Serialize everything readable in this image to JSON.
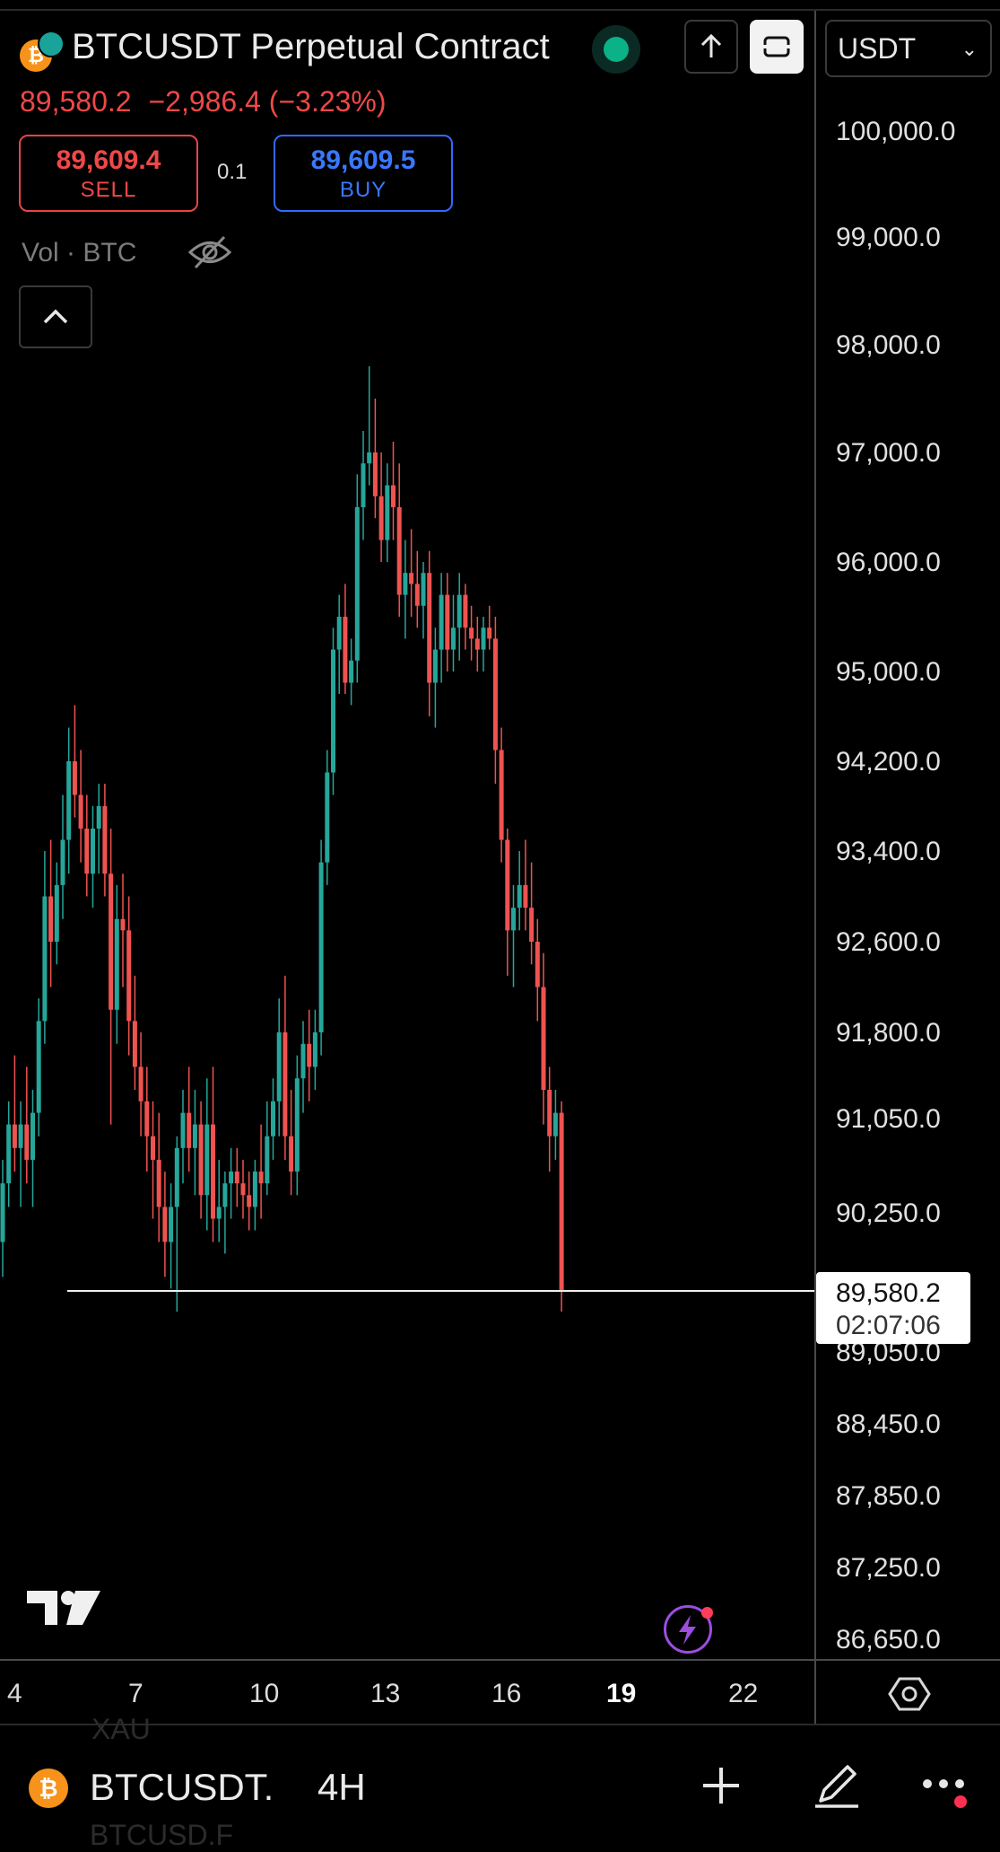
{
  "header": {
    "symbol_title": "BTCUSDT Perpetual Contract",
    "last_price": "89,580.2",
    "change": "−2,986.4",
    "change_pct": "(−3.23%)",
    "currency": "USDT",
    "status_color": "#0bb187"
  },
  "trade": {
    "sell_price": "89,609.4",
    "sell_label": "SELL",
    "buy_price": "89,609.5",
    "buy_label": "BUY",
    "spread": "0.1"
  },
  "indicator": {
    "label": "Vol · BTC"
  },
  "price_axis": {
    "labels": [
      "100,000.0",
      "99,000.0",
      "98,000.0",
      "97,000.0",
      "96,000.0",
      "95,000.0",
      "94,200.0",
      "93,400.0",
      "92,600.0",
      "91,800.0",
      "91,050.0",
      "90,250.0",
      "89,050.0",
      "88,450.0",
      "87,850.0",
      "87,250.0",
      "86,650.0"
    ],
    "current_price": "89,580.2",
    "countdown": "02:07:06"
  },
  "time_axis": {
    "labels": [
      "4",
      "7",
      "10",
      "13",
      "16",
      "19",
      "22"
    ],
    "bold_label": "19"
  },
  "bottom_bar": {
    "symbol": "BTCUSDT.",
    "interval": "4H",
    "ghost_above": "XAU",
    "ghost_below": "BTCUSD.F"
  },
  "colors": {
    "up": "#26a69a",
    "down": "#ef5350",
    "accent_sell": "#f04848",
    "accent_buy": "#3a78ff"
  },
  "chart_data": {
    "type": "candlestick",
    "symbol": "BTCUSDT",
    "interval": "4H",
    "price_unit": "USDT",
    "x_tick_labels": [
      "4",
      "7",
      "10",
      "13",
      "16",
      "19",
      "22"
    ],
    "last_price": 89580.2,
    "ohlc": [
      [
        90000,
        90700,
        89700,
        90500
      ],
      [
        90500,
        91200,
        90300,
        91000
      ],
      [
        91000,
        91600,
        90600,
        90800
      ],
      [
        90800,
        91200,
        90300,
        91000
      ],
      [
        91000,
        91500,
        90500,
        90700
      ],
      [
        90700,
        91300,
        90300,
        91100
      ],
      [
        91100,
        92100,
        90900,
        91900
      ],
      [
        91900,
        93400,
        91700,
        93000
      ],
      [
        93000,
        93500,
        92200,
        92600
      ],
      [
        92600,
        93300,
        92400,
        93100
      ],
      [
        93100,
        93900,
        92800,
        93500
      ],
      [
        93500,
        94500,
        93200,
        94200
      ],
      [
        94200,
        94700,
        93700,
        93900
      ],
      [
        93900,
        94300,
        93300,
        93600
      ],
      [
        93600,
        93900,
        93000,
        93200
      ],
      [
        93200,
        93800,
        92900,
        93600
      ],
      [
        93600,
        94000,
        93200,
        93800
      ],
      [
        93800,
        94000,
        93000,
        93200
      ],
      [
        93200,
        93600,
        91000,
        92000
      ],
      [
        92000,
        93100,
        91700,
        92800
      ],
      [
        92800,
        93200,
        92200,
        92700
      ],
      [
        92700,
        93000,
        91600,
        91900
      ],
      [
        91900,
        92300,
        91300,
        91500
      ],
      [
        91500,
        91800,
        90900,
        91200
      ],
      [
        91200,
        91500,
        90600,
        90900
      ],
      [
        90900,
        91200,
        90200,
        90700
      ],
      [
        90700,
        91100,
        90000,
        90300
      ],
      [
        90300,
        90600,
        89700,
        90000
      ],
      [
        90000,
        90500,
        89600,
        90300
      ],
      [
        90300,
        90900,
        89400,
        90800
      ],
      [
        90800,
        91300,
        90500,
        91100
      ],
      [
        91100,
        91500,
        90600,
        90800
      ],
      [
        90800,
        91300,
        90400,
        91000
      ],
      [
        91000,
        91200,
        90200,
        90400
      ],
      [
        90400,
        91400,
        90100,
        91000
      ],
      [
        91000,
        91500,
        90000,
        90200
      ],
      [
        90200,
        90700,
        90000,
        90300
      ],
      [
        90300,
        90600,
        89900,
        90500
      ],
      [
        90500,
        90800,
        90200,
        90600
      ],
      [
        90600,
        90800,
        90300,
        90500
      ],
      [
        90500,
        90700,
        90200,
        90400
      ],
      [
        90400,
        90600,
        90100,
        90300
      ],
      [
        90300,
        90700,
        90100,
        90600
      ],
      [
        90600,
        91000,
        90200,
        90500
      ],
      [
        90500,
        91200,
        90400,
        90900
      ],
      [
        90900,
        91400,
        90700,
        91200
      ],
      [
        91200,
        92100,
        90900,
        91800
      ],
      [
        91800,
        92300,
        90700,
        90900
      ],
      [
        90900,
        91300,
        90400,
        90600
      ],
      [
        90600,
        91600,
        90400,
        91400
      ],
      [
        91400,
        91900,
        91100,
        91700
      ],
      [
        91700,
        92000,
        91200,
        91500
      ],
      [
        91500,
        92000,
        91300,
        91800
      ],
      [
        91800,
        93500,
        91600,
        93300
      ],
      [
        93300,
        94300,
        93100,
        94100
      ],
      [
        94100,
        95400,
        93900,
        95200
      ],
      [
        95200,
        95700,
        94800,
        95500
      ],
      [
        95500,
        95800,
        94800,
        94900
      ],
      [
        94900,
        95300,
        94700,
        95100
      ],
      [
        95100,
        96800,
        94900,
        96500
      ],
      [
        96500,
        97200,
        96200,
        96900
      ],
      [
        96900,
        97800,
        96700,
        97000
      ],
      [
        97000,
        97500,
        96400,
        96600
      ],
      [
        96600,
        97000,
        96000,
        96200
      ],
      [
        96200,
        96900,
        96000,
        96700
      ],
      [
        96700,
        97100,
        96200,
        96500
      ],
      [
        96500,
        96900,
        95500,
        95700
      ],
      [
        95700,
        96200,
        95300,
        95900
      ],
      [
        95900,
        96300,
        95500,
        95800
      ],
      [
        95800,
        96100,
        95400,
        95600
      ],
      [
        95600,
        96000,
        95300,
        95900
      ],
      [
        95900,
        96100,
        94600,
        94900
      ],
      [
        94900,
        95400,
        94500,
        95200
      ],
      [
        95200,
        95900,
        94900,
        95700
      ],
      [
        95700,
        95900,
        95000,
        95200
      ],
      [
        95200,
        95700,
        95000,
        95400
      ],
      [
        95400,
        95900,
        95100,
        95700
      ],
      [
        95700,
        95800,
        95200,
        95400
      ],
      [
        95400,
        95600,
        95100,
        95300
      ],
      [
        95300,
        95500,
        95000,
        95200
      ],
      [
        95200,
        95500,
        95000,
        95400
      ],
      [
        95400,
        95600,
        95200,
        95300
      ],
      [
        95300,
        95500,
        94000,
        94300
      ],
      [
        94300,
        94500,
        93300,
        93500
      ],
      [
        93500,
        93600,
        92300,
        92700
      ],
      [
        92700,
        93100,
        92200,
        92900
      ],
      [
        92900,
        93400,
        92700,
        93100
      ],
      [
        93100,
        93500,
        92700,
        92900
      ],
      [
        92900,
        93300,
        92400,
        92600
      ],
      [
        92600,
        92800,
        91900,
        92200
      ],
      [
        92200,
        92500,
        91000,
        91300
      ],
      [
        91300,
        91500,
        90600,
        90900
      ],
      [
        90900,
        91300,
        90700,
        91100
      ],
      [
        91100,
        91200,
        89400,
        89580
      ]
    ]
  }
}
